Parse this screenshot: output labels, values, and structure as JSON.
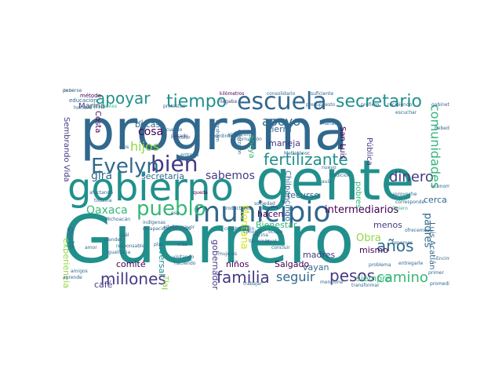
{
  "palette": {
    "teal": "#21908c",
    "blue": "#31688e",
    "indigo": "#443a83",
    "purple": "#440154",
    "green": "#35b779",
    "lime": "#8fd744",
    "yellow": "#d2e21b"
  },
  "words": [
    {
      "text": "programa",
      "color": "#31688e"
    },
    {
      "text": "Guerrero",
      "color": "#21908c"
    },
    {
      "text": "gente",
      "color": "#21908c"
    },
    {
      "text": "gobierno",
      "color": "#21908c"
    },
    {
      "text": "municipio",
      "color": "#31688e"
    },
    {
      "text": "escuela",
      "color": "#31688e"
    },
    {
      "text": "bien",
      "color": "#443a83"
    },
    {
      "text": "Evelyn",
      "color": "#31688e"
    },
    {
      "text": "pueblo",
      "color": "#35b779"
    },
    {
      "text": "secretario",
      "color": "#21908c"
    },
    {
      "text": "tiempo",
      "color": "#21908c"
    },
    {
      "text": "apoyar",
      "color": "#21908c"
    },
    {
      "text": "fertilizante",
      "color": "#21908c"
    },
    {
      "text": "dinero",
      "color": "#443a83"
    },
    {
      "text": "millones",
      "color": "#443a83"
    },
    {
      "text": "familia",
      "color": "#443a83"
    },
    {
      "text": "pesos",
      "color": "#443a83"
    },
    {
      "text": "camino",
      "color": "#35b779"
    },
    {
      "text": "años",
      "color": "#31688e"
    },
    {
      "text": "seguir",
      "color": "#31688e"
    },
    {
      "text": "comunidades",
      "color": "#35b779"
    },
    {
      "text": "apoyo",
      "color": "#31688e"
    },
    {
      "text": "hijos",
      "color": "#8fd744"
    },
    {
      "text": "cosa",
      "color": "#440154"
    },
    {
      "text": "gira",
      "color": "#31688e"
    },
    {
      "text": "Oaxaca",
      "color": "#35b779"
    },
    {
      "text": "sabemos",
      "color": "#443a83"
    },
    {
      "text": "secretaria",
      "color": "#31688e"
    },
    {
      "text": "becas",
      "color": "#31688e"
    },
    {
      "text": "tierra",
      "color": "#31688e"
    },
    {
      "text": "maneja",
      "color": "#443a83"
    },
    {
      "text": "recurso",
      "color": "#31688e"
    },
    {
      "text": "intermediarios",
      "color": "#440154"
    },
    {
      "text": "Bienestar",
      "color": "#35b779"
    },
    {
      "text": "hacen",
      "color": "#440154"
    },
    {
      "text": "menos",
      "color": "#443a83"
    },
    {
      "text": "cerca",
      "color": "#31688e"
    },
    {
      "text": "padres",
      "color": "#31688e"
    },
    {
      "text": "Obra",
      "color": "#8fd744"
    },
    {
      "text": "mismo",
      "color": "#440154"
    },
    {
      "text": "siempre",
      "color": "#35b779"
    },
    {
      "text": "madres",
      "color": "#443a83"
    },
    {
      "text": "vayan",
      "color": "#31688e"
    },
    {
      "text": "Salgado",
      "color": "#440154"
    },
    {
      "text": "niños",
      "color": "#440154"
    },
    {
      "text": "gobernadora",
      "color": "#443a83"
    },
    {
      "text": "comité",
      "color": "#440154"
    },
    {
      "text": "café",
      "color": "#443a83"
    },
    {
      "text": "experiencia",
      "color": "#8fd744"
    },
    {
      "text": "universal",
      "color": "#21908c"
    },
    {
      "text": "Montaña",
      "color": "#d2e21b"
    },
    {
      "text": "Sembrando Vida",
      "color": "#443a83"
    },
    {
      "text": "Marina",
      "color": "#443a83"
    },
    {
      "text": "Costa",
      "color": "#440154"
    },
    {
      "text": "gusto",
      "color": "#31688e"
    },
    {
      "text": "San Luis",
      "color": "#440154"
    },
    {
      "text": "Luis Acatlán",
      "color": "#31688e"
    },
    {
      "text": "Pública",
      "color": "#443a83"
    },
    {
      "text": "pobres",
      "color": "#35b779"
    },
    {
      "text": "apoya",
      "color": "#35b779"
    },
    {
      "text": "método",
      "color": "#440154"
    },
    {
      "text": "educación",
      "color": "#31688e"
    },
    {
      "text": "estudiantes",
      "color": "#35b779"
    },
    {
      "text": "protestas",
      "color": "#31688e"
    },
    {
      "text": "kilómetros",
      "color": "#440154"
    },
    {
      "text": "consolidario",
      "color": "#31688e"
    },
    {
      "text": "suficiente",
      "color": "#31688e"
    },
    {
      "text": "llegaba",
      "color": "#443a83"
    },
    {
      "text": "presupuesto",
      "color": "#31688e"
    },
    {
      "text": "prefiero",
      "color": "#31688e"
    },
    {
      "text": "recibiendo",
      "color": "#31688e"
    },
    {
      "text": "gabinete",
      "color": "#31688e"
    },
    {
      "text": "hombre",
      "color": "#31688e"
    },
    {
      "text": "Mañana",
      "color": "#31688e"
    },
    {
      "text": "pasado",
      "color": "#443a83"
    },
    {
      "text": "entrega",
      "color": "#31688e"
    },
    {
      "text": "dicapacidad",
      "color": "#31688e"
    },
    {
      "text": "indígenas",
      "color": "#31688e"
    },
    {
      "text": "adulto mayor",
      "color": "#31688e"
    },
    {
      "text": "productores",
      "color": "#31688e"
    },
    {
      "text": "sociedad",
      "color": "#31688e"
    },
    {
      "text": "oficina",
      "color": "#31688e"
    },
    {
      "text": "queda",
      "color": "#440154"
    },
    {
      "text": "Michoacán",
      "color": "#31688e"
    },
    {
      "text": "aula",
      "color": "#31688e"
    },
    {
      "text": "nuevo",
      "color": "#31688e"
    },
    {
      "text": "tradición",
      "color": "#31688e"
    },
    {
      "text": "aproveche",
      "color": "#31688e"
    },
    {
      "text": "corresponde",
      "color": "#31688e"
    },
    {
      "text": "Quiero",
      "color": "#35b779"
    },
    {
      "text": "economía",
      "color": "#31688e"
    },
    {
      "text": "mujeres",
      "color": "#31688e"
    },
    {
      "text": "construcción",
      "color": "#31688e"
    },
    {
      "text": "visitando",
      "color": "#31688e"
    },
    {
      "text": "haciendo",
      "color": "#31688e"
    },
    {
      "text": "terminar",
      "color": "#31688e"
    },
    {
      "text": "problema",
      "color": "#31688e"
    },
    {
      "text": "trabajar",
      "color": "#31688e"
    },
    {
      "text": "transformar",
      "color": "#31688e"
    },
    {
      "text": "promedio",
      "color": "#31688e"
    },
    {
      "text": "Tlapa",
      "color": "#8fd744"
    },
    {
      "text": "Chilpancingo",
      "color": "#31688e"
    },
    {
      "text": "bebederos",
      "color": "#31688e"
    },
    {
      "text": "escuchar",
      "color": "#31688e"
    },
    {
      "text": "atender",
      "color": "#31688e"
    },
    {
      "text": "amor",
      "color": "#31688e"
    },
    {
      "text": "salud",
      "color": "#31688e"
    },
    {
      "text": "acuerdo",
      "color": "#31688e"
    },
    {
      "text": "cuál",
      "color": "#31688e"
    },
    {
      "text": "responsable",
      "color": "#31688e"
    },
    {
      "text": "igualitaria",
      "color": "#31688e"
    },
    {
      "text": "entregarle",
      "color": "#31688e"
    },
    {
      "text": "Metlatónoc",
      "color": "#31688e"
    },
    {
      "text": "Abraham",
      "color": "#31688e"
    },
    {
      "text": "corrupción",
      "color": "#31688e"
    },
    {
      "text": "esforzaron",
      "color": "#31688e"
    },
    {
      "text": "coordinación",
      "color": "#31688e"
    },
    {
      "text": "apoyaron",
      "color": "#31688e"
    },
    {
      "text": "aprende",
      "color": "#31688e"
    },
    {
      "text": "ofrecemos",
      "color": "#31688e"
    },
    {
      "text": "tenemos",
      "color": "#31688e"
    },
    {
      "text": "Encima",
      "color": "#31688e"
    },
    {
      "text": "primer",
      "color": "#31688e"
    },
    {
      "text": "convivir",
      "color": "#31688e"
    },
    {
      "text": "amigos",
      "color": "#31688e"
    },
    {
      "text": "Igual",
      "color": "#31688e"
    },
    {
      "text": "concluir",
      "color": "#31688e"
    },
    {
      "text": "mencione",
      "color": "#31688e"
    },
    {
      "text": "afectando",
      "color": "#31688e"
    },
    {
      "text": "muchas",
      "color": "#31688e"
    },
    {
      "text": "plan",
      "color": "#31688e"
    },
    {
      "text": "vida",
      "color": "#31688e"
    },
    {
      "text": "color",
      "color": "#31688e"
    },
    {
      "text": "ocupe",
      "color": "#31688e"
    },
    {
      "text": "dios",
      "color": "#31688e"
    },
    {
      "text": "eso",
      "color": "#31688e"
    },
    {
      "text": "todavía",
      "color": "#31688e"
    },
    {
      "text": "debe",
      "color": "#31688e"
    },
    {
      "text": "ponerse",
      "color": "#31688e"
    }
  ]
}
